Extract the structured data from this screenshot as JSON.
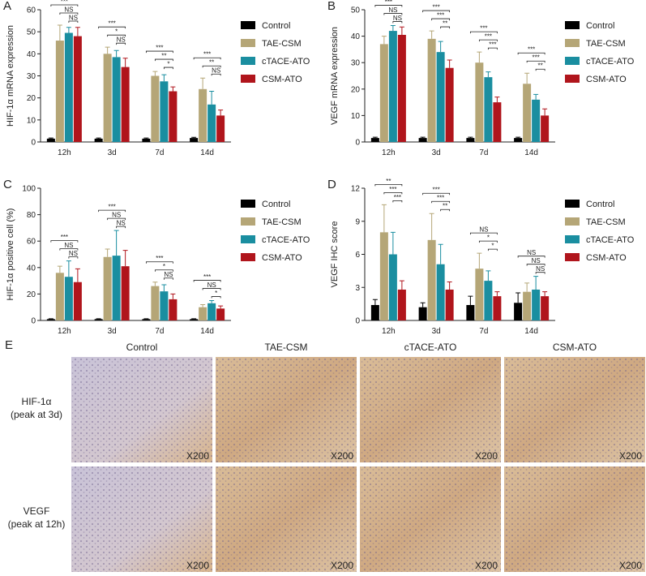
{
  "chart_data": [
    {
      "type": "bar",
      "panel": "A",
      "ylabel": "HIF-1α mRNA expression",
      "categories": [
        "12h",
        "3d",
        "7d",
        "14d"
      ],
      "series": [
        {
          "name": "Control",
          "color": "#000000",
          "values": [
            1.5,
            1.5,
            1.5,
            1.8
          ],
          "errors": [
            0.3,
            0.3,
            0.3,
            0.3
          ]
        },
        {
          "name": "TAE-CSM",
          "color": "#b5a677",
          "values": [
            46,
            40,
            30,
            24
          ],
          "errors": [
            7,
            3,
            2,
            5
          ]
        },
        {
          "name": "cTACE-ATO",
          "color": "#1a8ea0",
          "values": [
            49.5,
            38.5,
            27.5,
            17
          ],
          "errors": [
            2.5,
            3,
            3,
            6
          ]
        },
        {
          "name": "CSM-ATO",
          "color": "#b0151c",
          "values": [
            48,
            34,
            23,
            12
          ],
          "errors": [
            4,
            4,
            2,
            2.5
          ]
        }
      ],
      "ylim": [
        0,
        60
      ],
      "yticks": [
        0,
        10,
        20,
        30,
        40,
        50,
        60
      ],
      "significance": [
        [
          "***",
          "NS",
          "NS"
        ],
        [
          "***",
          "*",
          "NS"
        ],
        [
          "***",
          "**",
          "*"
        ],
        [
          "***",
          "**",
          "NS"
        ]
      ]
    },
    {
      "type": "bar",
      "panel": "B",
      "ylabel": "VEGF mRNA expression",
      "categories": [
        "12h",
        "3d",
        "7d",
        "14d"
      ],
      "series": [
        {
          "name": "Control",
          "color": "#000000",
          "values": [
            1.5,
            1.5,
            1.5,
            1.5
          ],
          "errors": [
            0.3,
            0.3,
            0.3,
            0.3
          ]
        },
        {
          "name": "TAE-CSM",
          "color": "#b5a677",
          "values": [
            37,
            39,
            30,
            22
          ],
          "errors": [
            3,
            3,
            4,
            4
          ]
        },
        {
          "name": "cTACE-ATO",
          "color": "#1a8ea0",
          "values": [
            42,
            34,
            24.5,
            16
          ],
          "errors": [
            2,
            4,
            2,
            2
          ]
        },
        {
          "name": "CSM-ATO",
          "color": "#b0151c",
          "values": [
            40.5,
            28,
            15,
            10
          ],
          "errors": [
            3,
            3,
            2,
            2.5
          ]
        }
      ],
      "ylim": [
        0,
        50
      ],
      "yticks": [
        0,
        10,
        20,
        30,
        40,
        50
      ],
      "significance": [
        [
          "***",
          "NS",
          "NS"
        ],
        [
          "***",
          "***",
          "**"
        ],
        [
          "***",
          "***",
          "***"
        ],
        [
          "***",
          "***",
          "**"
        ]
      ]
    },
    {
      "type": "bar",
      "panel": "C",
      "ylabel": "HIF-1α positive cell (%)",
      "categories": [
        "12h",
        "3d",
        "7d",
        "14d"
      ],
      "series": [
        {
          "name": "Control",
          "color": "#000000",
          "values": [
            1,
            1,
            1,
            1
          ],
          "errors": [
            0.3,
            0.3,
            0.3,
            0.3
          ]
        },
        {
          "name": "TAE-CSM",
          "color": "#b5a677",
          "values": [
            36,
            48,
            26,
            10
          ],
          "errors": [
            5,
            6,
            3,
            2
          ]
        },
        {
          "name": "cTACE-ATO",
          "color": "#1a8ea0",
          "values": [
            33,
            49,
            22,
            13
          ],
          "errors": [
            12,
            19,
            5,
            2
          ]
        },
        {
          "name": "CSM-ATO",
          "color": "#b0151c",
          "values": [
            29,
            41,
            16,
            9
          ],
          "errors": [
            10,
            12,
            4,
            2
          ]
        }
      ],
      "ylim": [
        0,
        100
      ],
      "yticks": [
        0,
        20,
        40,
        60,
        80,
        100
      ],
      "significance": [
        [
          "***",
          "NS",
          "NS"
        ],
        [
          "***",
          "NS",
          "NS"
        ],
        [
          "***",
          "*",
          "NS"
        ],
        [
          "***",
          "NS",
          "*"
        ]
      ]
    },
    {
      "type": "bar",
      "panel": "D",
      "ylabel": "VEGF IHC score",
      "categories": [
        "12h",
        "3d",
        "7d",
        "14d"
      ],
      "series": [
        {
          "name": "Control",
          "color": "#000000",
          "values": [
            1.4,
            1.2,
            1.4,
            1.6
          ],
          "errors": [
            0.5,
            0.4,
            0.8,
            0.9
          ]
        },
        {
          "name": "TAE-CSM",
          "color": "#b5a677",
          "values": [
            8,
            7.3,
            4.7,
            2.6
          ],
          "errors": [
            2.5,
            2.4,
            1.4,
            0.8
          ]
        },
        {
          "name": "cTACE-ATO",
          "color": "#1a8ea0",
          "values": [
            6,
            5.1,
            3.6,
            2.8
          ],
          "errors": [
            2,
            1.8,
            0.9,
            1.2
          ]
        },
        {
          "name": "CSM-ATO",
          "color": "#b0151c",
          "values": [
            2.8,
            2.8,
            2.2,
            2.2
          ],
          "errors": [
            0.8,
            0.7,
            0.4,
            0.4
          ]
        }
      ],
      "ylim": [
        0,
        12
      ],
      "yticks": [
        0,
        3,
        6,
        9,
        12
      ],
      "significance": [
        [
          "**",
          "***",
          "***"
        ],
        [
          "***",
          "***",
          "**"
        ],
        [
          "NS",
          "*",
          "*"
        ],
        [
          "NS",
          "NS",
          "NS"
        ]
      ]
    }
  ],
  "panel_e": {
    "label": "E",
    "columns": [
      "Control",
      "TAE-CSM",
      "cTACE-ATO",
      "CSM-ATO"
    ],
    "rows": [
      [
        "HIF-1α",
        "(peak at 3d)"
      ],
      [
        "VEGF",
        "(peak at 12h)"
      ]
    ],
    "magnification": "X200"
  }
}
